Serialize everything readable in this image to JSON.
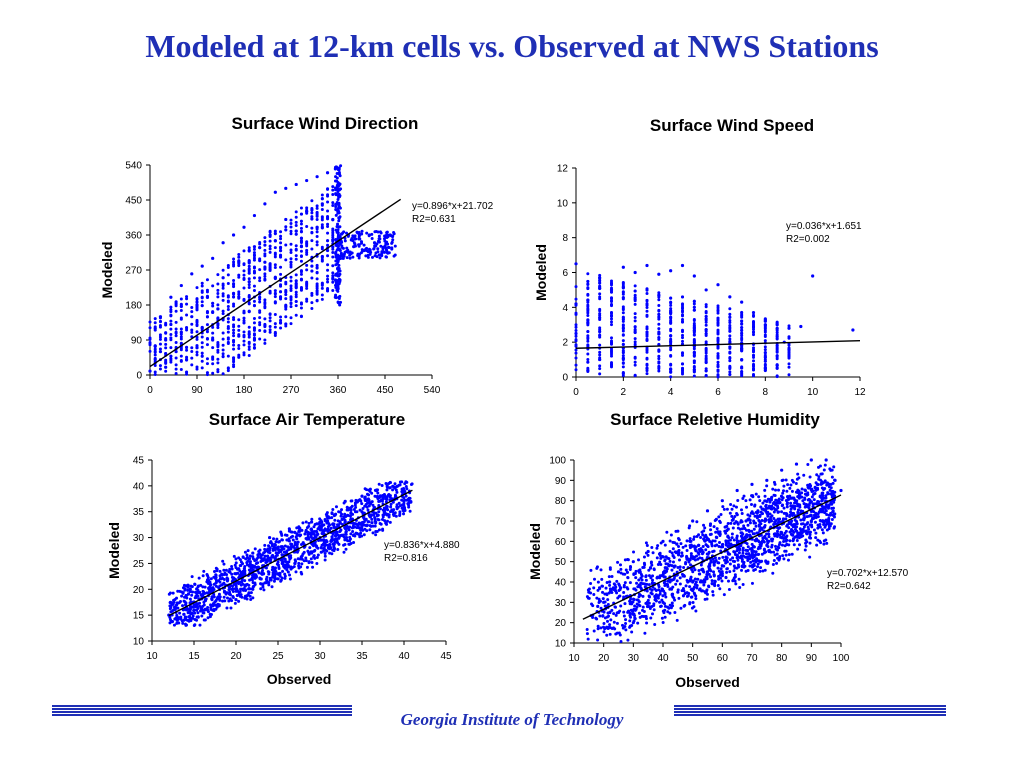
{
  "slide": {
    "title": "Modeled at 12-km cells vs. Observed at NWS Stations",
    "footer": "Georgia Institute of Technology",
    "accent_color": "#1f2fb5",
    "marker_color": "#0000ff"
  },
  "chart_data": [
    {
      "id": "wind-direction",
      "type": "scatter",
      "title": "Surface Wind Direction",
      "xlabel": "",
      "ylabel": "Modeled",
      "xlim": [
        0,
        540
      ],
      "ylim": [
        0,
        540
      ],
      "xticks": [
        0,
        90,
        180,
        270,
        360,
        450,
        540
      ],
      "yticks": [
        0,
        90,
        180,
        270,
        360,
        450,
        540
      ],
      "fit": {
        "slope": 0.896,
        "intercept": 21.702,
        "x_range": [
          0,
          480
        ]
      },
      "equation": "y=0.896*x+21.702",
      "r2": "R2=0.631",
      "grid": false,
      "sample_points": [
        [
          0,
          10
        ],
        [
          10,
          40
        ],
        [
          10,
          120
        ],
        [
          20,
          60
        ],
        [
          20,
          150
        ],
        [
          30,
          20
        ],
        [
          30,
          90
        ],
        [
          40,
          130
        ],
        [
          40,
          200
        ],
        [
          50,
          60
        ],
        [
          60,
          110
        ],
        [
          60,
          230
        ],
        [
          70,
          40
        ],
        [
          80,
          150
        ],
        [
          80,
          260
        ],
        [
          90,
          70
        ],
        [
          90,
          180
        ],
        [
          100,
          120
        ],
        [
          100,
          280
        ],
        [
          110,
          200
        ],
        [
          120,
          90
        ],
        [
          120,
          300
        ],
        [
          130,
          170
        ],
        [
          140,
          250
        ],
        [
          140,
          340
        ],
        [
          150,
          120
        ],
        [
          160,
          210
        ],
        [
          160,
          360
        ],
        [
          170,
          290
        ],
        [
          180,
          160
        ],
        [
          180,
          380
        ],
        [
          190,
          240
        ],
        [
          200,
          330
        ],
        [
          200,
          410
        ],
        [
          210,
          200
        ],
        [
          220,
          290
        ],
        [
          220,
          440
        ],
        [
          230,
          360
        ],
        [
          240,
          250
        ],
        [
          240,
          470
        ],
        [
          250,
          320
        ],
        [
          260,
          400
        ],
        [
          260,
          480
        ],
        [
          270,
          290
        ],
        [
          280,
          370
        ],
        [
          280,
          490
        ],
        [
          290,
          330
        ],
        [
          300,
          420
        ],
        [
          300,
          500
        ],
        [
          310,
          280
        ],
        [
          320,
          380
        ],
        [
          320,
          510
        ],
        [
          330,
          440
        ],
        [
          340,
          320
        ],
        [
          340,
          520
        ],
        [
          350,
          400
        ],
        [
          355,
          530
        ],
        [
          355,
          200
        ],
        [
          360,
          350
        ],
        [
          370,
          300
        ],
        [
          380,
          360
        ],
        [
          390,
          330
        ],
        [
          400,
          350
        ],
        [
          410,
          320
        ],
        [
          420,
          360
        ],
        [
          430,
          340
        ],
        [
          440,
          350
        ],
        [
          450,
          330
        ],
        [
          460,
          360
        ]
      ]
    },
    {
      "id": "wind-speed",
      "type": "scatter",
      "title": "Surface Wind Speed",
      "xlabel": "",
      "ylabel": "Modeled",
      "xlim": [
        0,
        12
      ],
      "ylim": [
        0,
        12
      ],
      "xticks": [
        0,
        2,
        4,
        6,
        8,
        10,
        12
      ],
      "yticks": [
        0,
        2,
        4,
        6,
        8,
        10,
        12
      ],
      "fit": {
        "slope": 0.036,
        "intercept": 1.651,
        "x_range": [
          0,
          12
        ]
      },
      "equation": "y=0.036*x+1.651",
      "r2": "R2=0.002",
      "grid": false,
      "sample_points": [
        [
          0,
          6.5
        ],
        [
          0,
          4.2
        ],
        [
          0,
          2.5
        ],
        [
          0.5,
          4.4
        ],
        [
          1,
          3.4
        ],
        [
          1,
          1.0
        ],
        [
          1.5,
          5.0
        ],
        [
          2,
          6.3
        ],
        [
          2,
          0.2
        ],
        [
          2.5,
          6.0
        ],
        [
          3,
          6.4
        ],
        [
          3,
          0.5
        ],
        [
          3.5,
          5.9
        ],
        [
          4,
          6.1
        ],
        [
          4,
          0.3
        ],
        [
          4.5,
          6.4
        ],
        [
          5,
          5.8
        ],
        [
          5,
          0.4
        ],
        [
          5.5,
          5.0
        ],
        [
          6,
          5.3
        ],
        [
          6,
          0.6
        ],
        [
          6.5,
          4.6
        ],
        [
          7,
          4.3
        ],
        [
          7,
          1.0
        ],
        [
          7.5,
          3.7
        ],
        [
          8,
          3.2
        ],
        [
          8,
          1.4
        ],
        [
          8.5,
          3.0
        ],
        [
          9,
          2.8
        ],
        [
          9,
          1.6
        ],
        [
          9.5,
          2.9
        ],
        [
          10,
          5.8
        ],
        [
          11.7,
          2.7
        ],
        [
          8.8,
          2.0
        ]
      ]
    },
    {
      "id": "air-temperature",
      "type": "scatter",
      "title": "Surface Air Temperature",
      "xlabel": "Observed",
      "ylabel": "Modeled",
      "xlim": [
        10,
        45
      ],
      "ylim": [
        10,
        45
      ],
      "xticks": [
        10,
        15,
        20,
        25,
        30,
        35,
        40,
        45
      ],
      "yticks": [
        10,
        15,
        20,
        25,
        30,
        35,
        40,
        45
      ],
      "fit": {
        "slope": 0.836,
        "intercept": 4.88,
        "x_range": [
          12,
          41
        ]
      },
      "equation": "y=0.836*x+4.880",
      "r2": "R2=0.816",
      "grid": false,
      "sample_points": [
        [
          12,
          15
        ],
        [
          13,
          14
        ],
        [
          14,
          17
        ],
        [
          15,
          16
        ],
        [
          16,
          19
        ],
        [
          17,
          20
        ],
        [
          18,
          17
        ],
        [
          19,
          22
        ],
        [
          20,
          18
        ],
        [
          20,
          23
        ],
        [
          21,
          24
        ],
        [
          22,
          20
        ],
        [
          22,
          27
        ],
        [
          23,
          22
        ],
        [
          24,
          26
        ],
        [
          24,
          30
        ],
        [
          25,
          23
        ],
        [
          25,
          28
        ],
        [
          26,
          27
        ],
        [
          27,
          25
        ],
        [
          27,
          31
        ],
        [
          28,
          29
        ],
        [
          29,
          27
        ],
        [
          29,
          33
        ],
        [
          30,
          30
        ],
        [
          31,
          28
        ],
        [
          31,
          34
        ],
        [
          32,
          31
        ],
        [
          33,
          33
        ],
        [
          33,
          37
        ],
        [
          34,
          32
        ],
        [
          35,
          35
        ],
        [
          35,
          38
        ],
        [
          36,
          34
        ],
        [
          37,
          37
        ],
        [
          38,
          36
        ],
        [
          38,
          40
        ],
        [
          39,
          38
        ],
        [
          40,
          37
        ],
        [
          40,
          39
        ]
      ]
    },
    {
      "id": "relative-humidity",
      "type": "scatter",
      "title": "Surface Reletive Humidity",
      "xlabel": "Observed",
      "ylabel": "Modeled",
      "xlim": [
        10,
        100
      ],
      "ylim": [
        10,
        100
      ],
      "xticks": [
        10,
        20,
        30,
        40,
        50,
        60,
        70,
        80,
        90,
        100
      ],
      "yticks": [
        10,
        20,
        30,
        40,
        50,
        60,
        70,
        80,
        90,
        100
      ],
      "fit": {
        "slope": 0.702,
        "intercept": 12.57,
        "x_range": [
          13,
          100
        ]
      },
      "equation": "y=0.702*x+12.570",
      "r2": "R2=0.642",
      "grid": false,
      "sample_points": [
        [
          15,
          35
        ],
        [
          18,
          28
        ],
        [
          20,
          30
        ],
        [
          22,
          40
        ],
        [
          25,
          25
        ],
        [
          25,
          45
        ],
        [
          28,
          33
        ],
        [
          30,
          20
        ],
        [
          30,
          50
        ],
        [
          32,
          38
        ],
        [
          35,
          28
        ],
        [
          35,
          55
        ],
        [
          38,
          42
        ],
        [
          40,
          30
        ],
        [
          40,
          60
        ],
        [
          42,
          48
        ],
        [
          45,
          35
        ],
        [
          45,
          65
        ],
        [
          48,
          52
        ],
        [
          50,
          40
        ],
        [
          50,
          70
        ],
        [
          52,
          58
        ],
        [
          55,
          45
        ],
        [
          55,
          75
        ],
        [
          58,
          62
        ],
        [
          60,
          48
        ],
        [
          60,
          80
        ],
        [
          62,
          66
        ],
        [
          65,
          52
        ],
        [
          65,
          85
        ],
        [
          68,
          70
        ],
        [
          70,
          55
        ],
        [
          70,
          88
        ],
        [
          72,
          75
        ],
        [
          75,
          58
        ],
        [
          75,
          90
        ],
        [
          78,
          78
        ],
        [
          80,
          62
        ],
        [
          80,
          95
        ],
        [
          82,
          82
        ],
        [
          85,
          65
        ],
        [
          85,
          98
        ],
        [
          88,
          85
        ],
        [
          90,
          70
        ],
        [
          90,
          100
        ],
        [
          92,
          88
        ],
        [
          95,
          75
        ],
        [
          95,
          100
        ],
        [
          98,
          90
        ],
        [
          100,
          85
        ]
      ]
    }
  ]
}
